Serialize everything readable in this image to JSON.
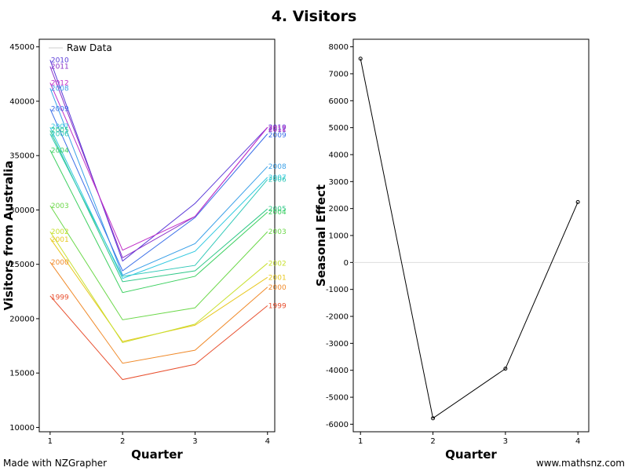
{
  "title": "4. Visitors",
  "footer": {
    "left": "Made with NZGrapher",
    "right": "www.mathsnz.com"
  },
  "chart_data": [
    {
      "type": "line",
      "name": "raw-data",
      "xlabel": "Quarter",
      "ylabel": "Visitors from Australia",
      "x": [
        1,
        2,
        3,
        4
      ],
      "xlim": [
        0.85,
        4.1
      ],
      "ylim": [
        9600,
        45700
      ],
      "yticks": [
        10000,
        15000,
        20000,
        25000,
        30000,
        35000,
        40000,
        45000
      ],
      "legend": {
        "label": "Raw Data",
        "position": "top-left"
      },
      "series": [
        {
          "name": "1999",
          "color": "#e8502f",
          "values": [
            22100,
            14400,
            15800,
            21200
          ]
        },
        {
          "name": "2000",
          "color": "#f08a2a",
          "values": [
            25200,
            15900,
            17100,
            22900
          ]
        },
        {
          "name": "2001",
          "color": "#e8c820",
          "values": [
            27400,
            17900,
            19400,
            23800
          ]
        },
        {
          "name": "2002",
          "color": "#c8e030",
          "values": [
            28000,
            17800,
            19500,
            25100
          ]
        },
        {
          "name": "2003",
          "color": "#6cd84a",
          "values": [
            30400,
            19900,
            21000,
            28000
          ]
        },
        {
          "name": "2004",
          "color": "#3cd060",
          "values": [
            35500,
            22400,
            23900,
            29800
          ]
        },
        {
          "name": "2005",
          "color": "#30c888",
          "values": [
            37300,
            23400,
            24400,
            30100
          ]
        },
        {
          "name": "2006",
          "color": "#30c8b8",
          "values": [
            37000,
            23900,
            24900,
            32800
          ]
        },
        {
          "name": "2007",
          "color": "#30c8e0",
          "values": [
            37600,
            23700,
            26200,
            33000
          ]
        },
        {
          "name": "2008",
          "color": "#3aa0e8",
          "values": [
            41200,
            24000,
            26900,
            34000
          ]
        },
        {
          "name": "2009",
          "color": "#3a6ee8",
          "values": [
            39300,
            24400,
            29300,
            37000
          ]
        },
        {
          "name": "2010",
          "color": "#5a3ad8",
          "values": [
            43800,
            25300,
            30600,
            37600
          ]
        },
        {
          "name": "2011",
          "color": "#8a30c8",
          "values": [
            43200,
            25600,
            29400,
            37600
          ]
        },
        {
          "name": "2012",
          "color": "#c030c8",
          "values": [
            41700,
            26300,
            29400,
            37600
          ]
        }
      ],
      "labels_left": [
        {
          "text": "2010",
          "y": 43800
        },
        {
          "text": "2011",
          "y": 43200
        },
        {
          "text": "2012",
          "y": 41700
        },
        {
          "text": "2008",
          "y": 41200
        },
        {
          "text": "2009",
          "y": 39300
        },
        {
          "text": "2007",
          "y": 37700
        },
        {
          "text": "2005",
          "y": 37350
        },
        {
          "text": "2006",
          "y": 37000
        },
        {
          "text": "2004",
          "y": 35500
        },
        {
          "text": "2003",
          "y": 30400
        },
        {
          "text": "2002",
          "y": 28000
        },
        {
          "text": "2001",
          "y": 27300
        },
        {
          "text": "2000",
          "y": 25200
        },
        {
          "text": "1999",
          "y": 22000
        }
      ],
      "labels_right": [
        {
          "text": "2010",
          "y": 37600
        },
        {
          "text": "2012",
          "y": 37500
        },
        {
          "text": "2011",
          "y": 37400
        },
        {
          "text": "2009",
          "y": 36900
        },
        {
          "text": "2008",
          "y": 34000
        },
        {
          "text": "2007",
          "y": 33000
        },
        {
          "text": "2006",
          "y": 32800
        },
        {
          "text": "2005",
          "y": 30100
        },
        {
          "text": "2004",
          "y": 29800
        },
        {
          "text": "2003",
          "y": 28000
        },
        {
          "text": "2002",
          "y": 25100
        },
        {
          "text": "2001",
          "y": 23800
        },
        {
          "text": "2000",
          "y": 22900
        },
        {
          "text": "1999",
          "y": 21200
        }
      ]
    },
    {
      "type": "line",
      "name": "seasonal-effect",
      "xlabel": "Quarter",
      "ylabel": "Seasonal Effect",
      "x": [
        1,
        2,
        3,
        4
      ],
      "xlim": [
        0.9,
        4.15
      ],
      "ylim": [
        -6280,
        8280
      ],
      "yticks": [
        -6000,
        -5000,
        -4000,
        -3000,
        -2000,
        -1000,
        0,
        1000,
        2000,
        3000,
        4000,
        5000,
        6000,
        7000,
        8000
      ],
      "series": [
        {
          "color": "#000000",
          "values": [
            7560,
            -5780,
            -3940,
            2240
          ]
        }
      ],
      "zero_line_color": "#dddddd"
    }
  ]
}
